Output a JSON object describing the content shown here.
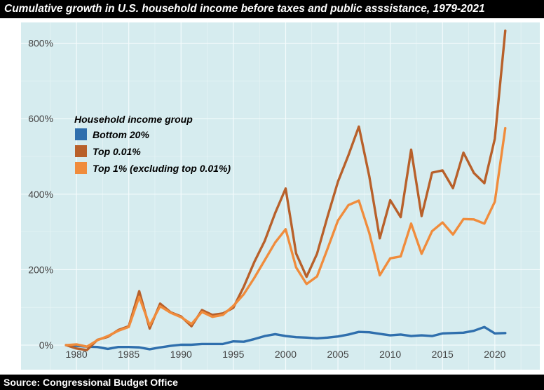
{
  "chart_data": {
    "type": "line",
    "title": "Cumulative growth in U.S. household income before taxes and public asssistance, 1979-2021",
    "source": "Source: Congressional Budget Office",
    "xlabel": "",
    "ylabel": "",
    "xlim": [
      1974.7,
      2024.3
    ],
    "ylim": [
      -65,
      855
    ],
    "x_ticks": [
      1980,
      1985,
      1990,
      1995,
      2000,
      2005,
      2010,
      2015,
      2020
    ],
    "x_tick_labels": [
      "1980",
      "1985",
      "1990",
      "1995",
      "2000",
      "2005",
      "2010",
      "2015",
      "2020"
    ],
    "y_ticks": [
      0,
      200,
      400,
      600,
      800
    ],
    "y_tick_labels": [
      "0%",
      "200%",
      "400%",
      "600%",
      "800%"
    ],
    "grid": true,
    "legend": {
      "title": "Household income group",
      "position": "top-left"
    },
    "x": [
      1979,
      1980,
      1981,
      1982,
      1983,
      1984,
      1985,
      1986,
      1987,
      1988,
      1989,
      1990,
      1991,
      1992,
      1993,
      1994,
      1995,
      1996,
      1997,
      1998,
      1999,
      2000,
      2001,
      2002,
      2003,
      2004,
      2005,
      2006,
      2007,
      2008,
      2009,
      2010,
      2011,
      2012,
      2013,
      2014,
      2015,
      2016,
      2017,
      2018,
      2019,
      2020,
      2021
    ],
    "series": [
      {
        "name": "Bottom 20%",
        "color": "#2f6fad",
        "values": [
          0,
          -2,
          -4,
          -5,
          -10,
          -5,
          -5,
          -6,
          -11,
          -6,
          -2,
          1,
          1,
          3,
          3,
          3,
          10,
          9,
          16,
          24,
          29,
          24,
          21,
          20,
          18,
          20,
          23,
          28,
          35,
          34,
          30,
          26,
          28,
          24,
          26,
          24,
          31,
          32,
          33,
          38,
          48,
          31,
          32
        ]
      },
      {
        "name": "Top 0.01%",
        "color": "#b8602a",
        "values": [
          0,
          -9,
          -13,
          14,
          22,
          40,
          50,
          143,
          44,
          110,
          87,
          76,
          50,
          93,
          80,
          84,
          99,
          155,
          220,
          276,
          350,
          415,
          243,
          181,
          242,
          340,
          433,
          503,
          579,
          447,
          283,
          384,
          339,
          518,
          342,
          457,
          463,
          416,
          510,
          456,
          429,
          547,
          833
        ]
      },
      {
        "name": "Top 1% (excluding top 0.01%)",
        "color": "#f08c3c",
        "values": [
          0,
          2,
          -4,
          13,
          24,
          38,
          48,
          128,
          52,
          103,
          86,
          74,
          56,
          88,
          75,
          80,
          104,
          135,
          178,
          225,
          272,
          307,
          206,
          162,
          182,
          255,
          330,
          371,
          383,
          297,
          185,
          230,
          235,
          322,
          242,
          302,
          325,
          293,
          334,
          333,
          322,
          380,
          575
        ]
      }
    ]
  }
}
